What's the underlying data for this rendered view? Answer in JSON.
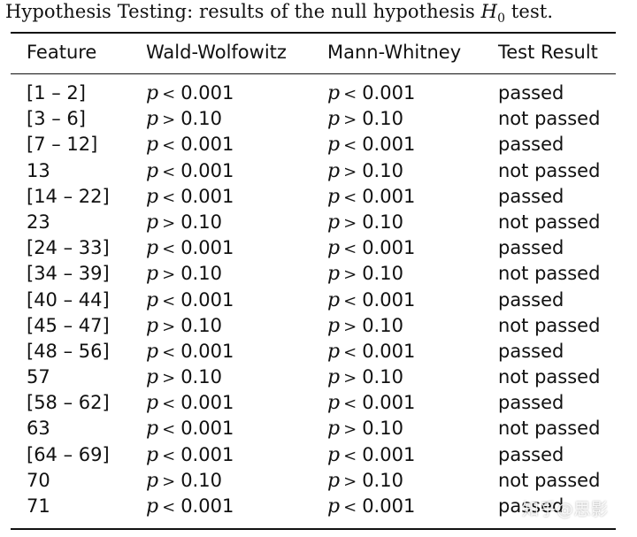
{
  "caption": {
    "text": "Hypothesis Testing: results of the null hypothesis",
    "symbol": "H",
    "subscript": "0",
    "tail": "test."
  },
  "headers": {
    "feature": "Feature",
    "wald": "Wald-Wolfowitz",
    "mann": "Mann-Whitney",
    "result": "Test Result"
  },
  "rows": [
    {
      "feature": "[1 – 2]",
      "wald_op": "<",
      "wald_val": "0.001",
      "mann_op": "<",
      "mann_val": "0.001",
      "result": "passed"
    },
    {
      "feature": "[3 – 6]",
      "wald_op": ">",
      "wald_val": "0.10",
      "mann_op": ">",
      "mann_val": "0.10",
      "result": "not passed"
    },
    {
      "feature": "[7 – 12]",
      "wald_op": "<",
      "wald_val": "0.001",
      "mann_op": "<",
      "mann_val": "0.001",
      "result": "passed"
    },
    {
      "feature": "13",
      "wald_op": "<",
      "wald_val": "0.001",
      "mann_op": ">",
      "mann_val": "0.10",
      "result": "not passed"
    },
    {
      "feature": "[14 – 22]",
      "wald_op": "<",
      "wald_val": "0.001",
      "mann_op": "<",
      "mann_val": "0.001",
      "result": "passed"
    },
    {
      "feature": "23",
      "wald_op": ">",
      "wald_val": "0.10",
      "mann_op": ">",
      "mann_val": "0.10",
      "result": "not passed"
    },
    {
      "feature": "[24 – 33]",
      "wald_op": "<",
      "wald_val": "0.001",
      "mann_op": "<",
      "mann_val": "0.001",
      "result": "passed"
    },
    {
      "feature": "[34 – 39]",
      "wald_op": ">",
      "wald_val": "0.10",
      "mann_op": ">",
      "mann_val": "0.10",
      "result": "not passed"
    },
    {
      "feature": "[40 – 44]",
      "wald_op": "<",
      "wald_val": "0.001",
      "mann_op": "<",
      "mann_val": "0.001",
      "result": "passed"
    },
    {
      "feature": "[45 – 47]",
      "wald_op": ">",
      "wald_val": "0.10",
      "mann_op": ">",
      "mann_val": "0.10",
      "result": "not passed"
    },
    {
      "feature": "[48 – 56]",
      "wald_op": "<",
      "wald_val": "0.001",
      "mann_op": "<",
      "mann_val": "0.001",
      "result": "passed"
    },
    {
      "feature": "57",
      "wald_op": ">",
      "wald_val": "0.10",
      "mann_op": ">",
      "mann_val": "0.10",
      "result": "not passed"
    },
    {
      "feature": "[58 – 62]",
      "wald_op": "<",
      "wald_val": "0.001",
      "mann_op": "<",
      "mann_val": "0.001",
      "result": "passed"
    },
    {
      "feature": "63",
      "wald_op": "<",
      "wald_val": "0.001",
      "mann_op": ">",
      "mann_val": "0.10",
      "result": "not passed"
    },
    {
      "feature": "[64 – 69]",
      "wald_op": "<",
      "wald_val": "0.001",
      "mann_op": "<",
      "mann_val": "0.001",
      "result": "passed"
    },
    {
      "feature": "70",
      "wald_op": ">",
      "wald_val": "0.10",
      "mann_op": ">",
      "mann_val": "0.10",
      "result": "not passed"
    },
    {
      "feature": "71",
      "wald_op": "<",
      "wald_val": "0.001",
      "mann_op": "<",
      "mann_val": "0.001",
      "result": "passed"
    }
  ],
  "p_symbol": "p",
  "watermark": "知乎@思影"
}
